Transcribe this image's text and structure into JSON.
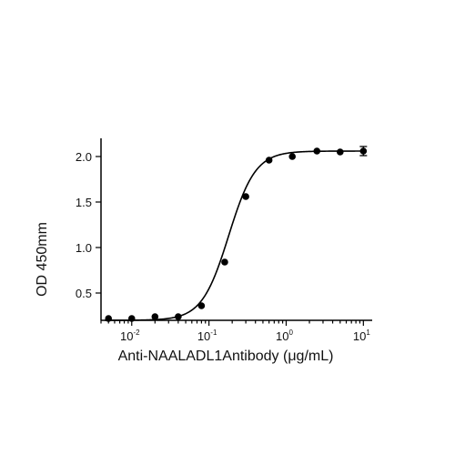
{
  "chart_data": {
    "type": "scatter",
    "title": "",
    "xlabel": "Anti-NAALADL1Antibody (μg/mL)",
    "ylabel": "OD 450mm",
    "x_scale": "log",
    "xlim": [
      0.004,
      13
    ],
    "ylim": [
      0.2,
      2.2
    ],
    "x_ticks": [
      {
        "value": 0.01,
        "base": "10",
        "exp": "-2"
      },
      {
        "value": 0.1,
        "base": "10",
        "exp": "-1"
      },
      {
        "value": 1,
        "base": "10",
        "exp": "0"
      },
      {
        "value": 10,
        "base": "10",
        "exp": "1"
      }
    ],
    "y_ticks": [
      {
        "value": 0.5,
        "label": "0.5"
      },
      {
        "value": 1.0,
        "label": "1.0"
      },
      {
        "value": 1.5,
        "label": "1.5"
      },
      {
        "value": 2.0,
        "label": "2.0"
      }
    ],
    "grid": false,
    "legend": "none",
    "series": [
      {
        "points": [
          {
            "x": 0.005,
            "y": 0.22
          },
          {
            "x": 0.01,
            "y": 0.22
          },
          {
            "x": 0.02,
            "y": 0.24
          },
          {
            "x": 0.04,
            "y": 0.24
          },
          {
            "x": 0.08,
            "y": 0.36
          },
          {
            "x": 0.16,
            "y": 0.84
          },
          {
            "x": 0.3,
            "y": 1.56
          },
          {
            "x": 0.6,
            "y": 1.96
          },
          {
            "x": 1.2,
            "y": 2.0
          },
          {
            "x": 2.5,
            "y": 2.06
          },
          {
            "x": 5,
            "y": 2.05
          },
          {
            "x": 10,
            "y": 2.06,
            "err": 0.05
          }
        ],
        "fit": {
          "model": "four-parameter logistic",
          "bottom": 0.2,
          "top": 2.06,
          "ec50": 0.18,
          "hill": 2.5
        },
        "color": "#000000"
      }
    ]
  }
}
